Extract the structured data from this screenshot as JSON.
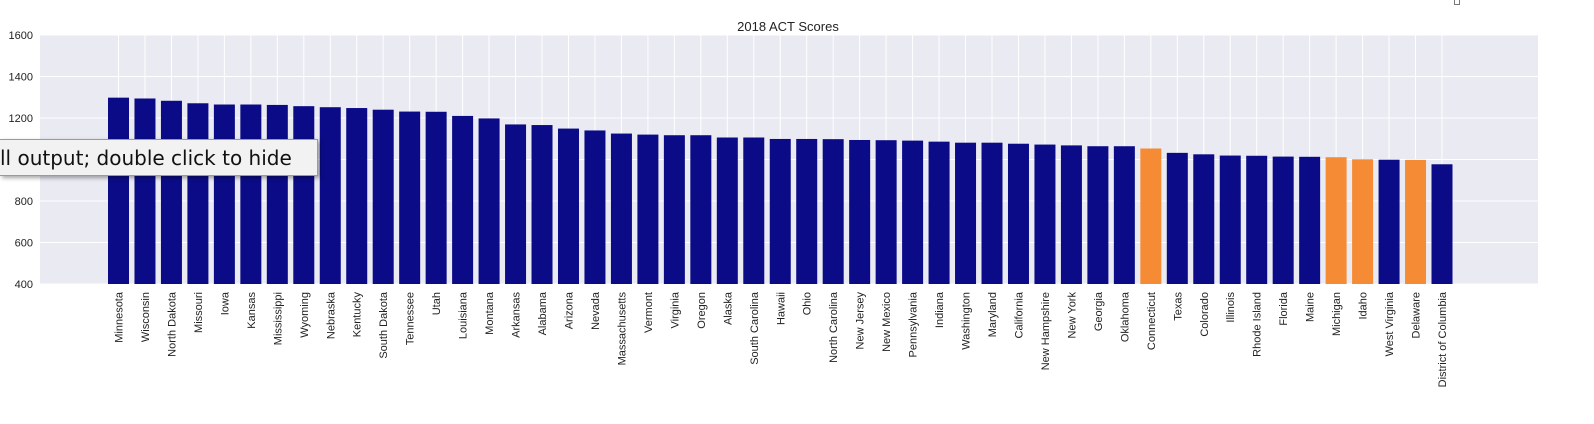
{
  "output_toggle": {
    "label": "ll output; double click to hide"
  },
  "colors": {
    "background_plot": "#eaeaf2",
    "bar_default": "#0b0b87",
    "bar_highlight": "#f58b34",
    "grid": "#ffffff"
  },
  "chart_data": {
    "type": "bar",
    "title": "2018 ACT Scores",
    "xlabel": "",
    "ylabel": "",
    "ylim": [
      400,
      1600
    ],
    "yticks": [
      400,
      600,
      800,
      1000,
      1200,
      1400,
      1600
    ],
    "grid": true,
    "categories": [
      "Minnesota",
      "Wisconsin",
      "North Dakota",
      "Missouri",
      "Iowa",
      "Kansas",
      "Mississippi",
      "Wyoming",
      "Nebraska",
      "Kentucky",
      "South Dakota",
      "Tennessee",
      "Utah",
      "Louisiana",
      "Montana",
      "Arkansas",
      "Alabama",
      "Arizona",
      "Nevada",
      "Massachusetts",
      "Vermont",
      "Virginia",
      "Oregon",
      "Alaska",
      "South Carolina",
      "Hawaii",
      "Ohio",
      "North Carolina",
      "New Jersey",
      "New Mexico",
      "Pennsylvania",
      "Indiana",
      "Washington",
      "Maryland",
      "California",
      "New Hampshire",
      "New York",
      "Georgia",
      "Oklahoma",
      "Connecticut",
      "Texas",
      "Colorado",
      "Illinois",
      "Rhode Island",
      "Florida",
      "Maine",
      "Michigan",
      "Idaho",
      "West Virginia",
      "Delaware",
      "District of Columbia"
    ],
    "values": [
      1298,
      1294,
      1283,
      1271,
      1265,
      1265,
      1263,
      1257,
      1252,
      1248,
      1240,
      1231,
      1230,
      1210,
      1198,
      1169,
      1166,
      1149,
      1140,
      1125,
      1120,
      1117,
      1117,
      1106,
      1106,
      1099,
      1099,
      1098,
      1094,
      1093,
      1091,
      1086,
      1081,
      1081,
      1076,
      1072,
      1068,
      1064,
      1064,
      1053,
      1032,
      1025,
      1019,
      1018,
      1014,
      1013,
      1011,
      1001,
      999,
      998,
      977
    ],
    "highlighted": [
      "Connecticut",
      "Michigan",
      "Idaho",
      "Delaware"
    ]
  }
}
